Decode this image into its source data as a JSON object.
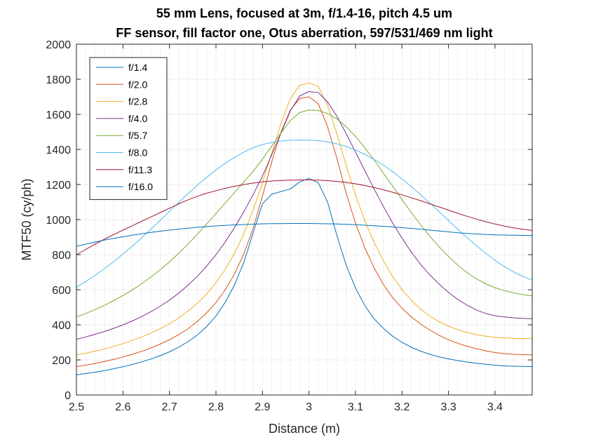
{
  "chart_data": {
    "type": "line",
    "title": "55 mm Lens, focused at 3m, f/1.4-16, pitch 4.5 um",
    "subtitle": "FF sensor, fill factor one, Otus aberration, 597/531/469 nm light",
    "xlabel": "Distance (m)",
    "ylabel": "MTF50 (cy/ph)",
    "xlim": [
      2.5,
      3.48
    ],
    "ylim": [
      0,
      2000
    ],
    "xticks": [
      2.5,
      2.6,
      2.7,
      2.8,
      2.9,
      3.0,
      3.1,
      3.2,
      3.3,
      3.4
    ],
    "xtick_labels": [
      "2.5",
      "2.6",
      "2.7",
      "2.8",
      "2.9",
      "3",
      "3.1",
      "3.2",
      "3.3",
      "3.4"
    ],
    "yticks": [
      0,
      200,
      400,
      600,
      800,
      1000,
      1200,
      1400,
      1600,
      1800,
      2000
    ],
    "ytick_labels": [
      "0",
      "200",
      "400",
      "600",
      "800",
      "1000",
      "1200",
      "1400",
      "1600",
      "1800",
      "2000"
    ],
    "grid": "on (dotted, major and minor x)",
    "legend_position": "top-left",
    "x": [
      2.5,
      2.52,
      2.54,
      2.56,
      2.58,
      2.6,
      2.62,
      2.64,
      2.66,
      2.68,
      2.7,
      2.72,
      2.74,
      2.76,
      2.78,
      2.8,
      2.82,
      2.84,
      2.86,
      2.88,
      2.9,
      2.92,
      2.94,
      2.96,
      2.98,
      3.0,
      3.02,
      3.04,
      3.06,
      3.08,
      3.1,
      3.12,
      3.14,
      3.16,
      3.18,
      3.2,
      3.22,
      3.24,
      3.26,
      3.28,
      3.3,
      3.32,
      3.34,
      3.36,
      3.38,
      3.4,
      3.42,
      3.44,
      3.46,
      3.48
    ],
    "series": [
      {
        "name": "f/1.4",
        "color": "#0072BD",
        "values": [
          115,
          122,
          130,
          139,
          150,
          161,
          174,
          189,
          205,
          224,
          246,
          273,
          304,
          342,
          390,
          451,
          528,
          628,
          757,
          924,
          1090,
          1145,
          1160,
          1175,
          1215,
          1235,
          1210,
          1100,
          910,
          740,
          610,
          510,
          435,
          380,
          335,
          300,
          272,
          250,
          232,
          217,
          206,
          196,
          188,
          181,
          175,
          170,
          166,
          164,
          163,
          162
        ]
      },
      {
        "name": "f/2.0",
        "color": "#D95319",
        "values": [
          162,
          170,
          180,
          191,
          203,
          217,
          232,
          249,
          268,
          290,
          315,
          344,
          378,
          419,
          468,
          527,
          600,
          690,
          805,
          950,
          1135,
          1330,
          1500,
          1625,
          1690,
          1700,
          1660,
          1530,
          1350,
          1150,
          980,
          840,
          725,
          630,
          555,
          495,
          445,
          405,
          370,
          340,
          315,
          295,
          278,
          264,
          252,
          242,
          236,
          232,
          230,
          229
        ]
      },
      {
        "name": "f/2.8",
        "color": "#EDB120",
        "values": [
          228,
          238,
          250,
          263,
          277,
          293,
          311,
          331,
          353,
          378,
          406,
          439,
          478,
          523,
          576,
          640,
          716,
          808,
          920,
          1055,
          1210,
          1380,
          1550,
          1690,
          1765,
          1780,
          1760,
          1650,
          1490,
          1310,
          1140,
          995,
          870,
          765,
          675,
          600,
          540,
          490,
          450,
          418,
          392,
          372,
          356,
          344,
          335,
          329,
          325,
          323,
          322,
          321
        ]
      },
      {
        "name": "f/4.0",
        "color": "#7E2F8E",
        "values": [
          318,
          331,
          346,
          362,
          380,
          400,
          422,
          447,
          475,
          506,
          541,
          581,
          626,
          677,
          735,
          800,
          873,
          955,
          1045,
          1143,
          1248,
          1370,
          1495,
          1620,
          1705,
          1730,
          1725,
          1670,
          1590,
          1490,
          1385,
          1280,
          1175,
          1075,
          980,
          895,
          815,
          745,
          685,
          632,
          585,
          545,
          512,
          485,
          465,
          452,
          445,
          440,
          437,
          435
        ]
      },
      {
        "name": "f/5.7",
        "color": "#77AC30",
        "values": [
          445,
          465,
          487,
          511,
          538,
          567,
          599,
          634,
          672,
          714,
          759,
          808,
          861,
          917,
          975,
          1035,
          1095,
          1155,
          1215,
          1275,
          1345,
          1420,
          1495,
          1565,
          1610,
          1625,
          1622,
          1605,
          1575,
          1530,
          1475,
          1410,
          1340,
          1265,
          1190,
          1115,
          1040,
          970,
          905,
          845,
          790,
          740,
          698,
          662,
          634,
          612,
          595,
          582,
          572,
          565
        ]
      },
      {
        "name": "f/8.0",
        "color": "#4DBEEE",
        "values": [
          615,
          647,
          682,
          720,
          760,
          803,
          848,
          895,
          945,
          995,
          1047,
          1098,
          1148,
          1196,
          1241,
          1283,
          1321,
          1355,
          1385,
          1410,
          1428,
          1440,
          1448,
          1452,
          1453,
          1453,
          1450,
          1443,
          1432,
          1417,
          1397,
          1372,
          1343,
          1310,
          1273,
          1232,
          1188,
          1142,
          1094,
          1045,
          995,
          945,
          897,
          851,
          808,
          768,
          733,
          702,
          676,
          655
        ]
      },
      {
        "name": "f/11.3",
        "color": "#A2142F",
        "values": [
          800,
          830,
          860,
          888,
          915,
          940,
          965,
          990,
          1015,
          1040,
          1065,
          1090,
          1113,
          1133,
          1150,
          1165,
          1178,
          1190,
          1200,
          1208,
          1215,
          1220,
          1223,
          1225,
          1226,
          1226,
          1225,
          1222,
          1218,
          1212,
          1204,
          1194,
          1183,
          1170,
          1156,
          1141,
          1125,
          1108,
          1090,
          1072,
          1054,
          1036,
          1019,
          1003,
          988,
          975,
          963,
          953,
          945,
          938
        ]
      },
      {
        "name": "f/16.0",
        "color": "#0072BD",
        "values": [
          848,
          860,
          872,
          883,
          893,
          902,
          911,
          919,
          927,
          934,
          940,
          946,
          951,
          956,
          960,
          964,
          967,
          970,
          972,
          974,
          976,
          977,
          977,
          978,
          978,
          978,
          977,
          976,
          975,
          973,
          971,
          968,
          965,
          962,
          958,
          954,
          950,
          945,
          940,
          935,
          930,
          925,
          921,
          918,
          915,
          913,
          912,
          911,
          910,
          910
        ]
      }
    ]
  }
}
